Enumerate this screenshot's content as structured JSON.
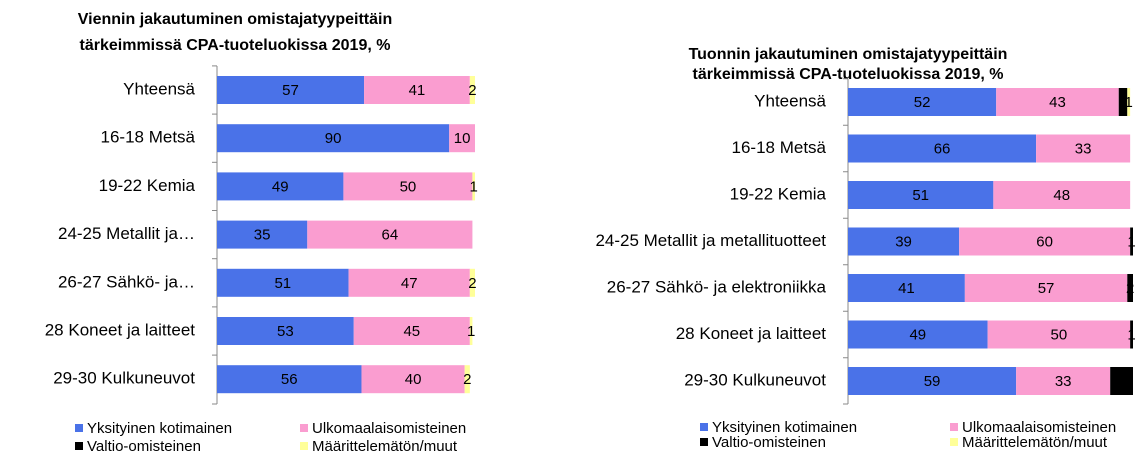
{
  "chart_data": [
    {
      "type": "stacked-bar-horizontal",
      "title": [
        "Viennin jakautuminen omistajatyypeittäin",
        "tärkeimmissä CPA-tuoteluokissa 2019, %"
      ],
      "categories": [
        "Yhteensä",
        "16-18 Metsä",
        "19-22 Kemia",
        "24-25 Metallit ja…",
        "26-27 Sähkö- ja…",
        "28 Koneet ja laitteet",
        "29-30 Kulkuneuvot"
      ],
      "xlim": [
        0,
        100
      ],
      "series": [
        {
          "name": "Yksityinen kotimainen",
          "color": "#4a72e8",
          "values": [
            57,
            90,
            49,
            35,
            51,
            53,
            56
          ]
        },
        {
          "name": "Ulkomaalaisomisteinen",
          "color": "#fa9dd0",
          "values": [
            41,
            10,
            50,
            64,
            47,
            45,
            40
          ]
        },
        {
          "name": "Valtio-omisteinen",
          "color": "#000000",
          "values": [
            0,
            0,
            0,
            0,
            0,
            0,
            0
          ]
        },
        {
          "name": "Määrittelemätön/muut",
          "color": "#ffff99",
          "values": [
            2,
            0,
            1,
            0,
            2,
            1,
            2
          ]
        }
      ]
    },
    {
      "type": "stacked-bar-horizontal",
      "title": [
        "Tuonnin jakautuminen omistajatyypeittäin",
        "tärkeimmissä CPA-tuoteluokissa 2019, %"
      ],
      "categories": [
        "Yhteensä",
        "16-18 Metsä",
        "19-22 Kemia",
        "24-25 Metallit ja metallituotteet",
        "26-27 Sähkö- ja elektroniikka",
        "28 Koneet ja laitteet",
        "29-30 Kulkuneuvot"
      ],
      "xlim": [
        0,
        100
      ],
      "series": [
        {
          "name": "Yksityinen kotimainen",
          "color": "#4a72e8",
          "values": [
            52,
            66,
            51,
            39,
            41,
            49,
            59
          ]
        },
        {
          "name": "Ulkomaalaisomisteinen",
          "color": "#fa9dd0",
          "values": [
            43,
            33,
            48,
            60,
            57,
            50,
            33
          ]
        },
        {
          "name": "Valtio-omisteinen",
          "color": "#000000",
          "values": [
            3,
            0,
            0,
            1,
            2,
            1,
            8
          ]
        },
        {
          "name": "Määrittelemätön/muut",
          "color": "#ffff99",
          "values": [
            1,
            0,
            0,
            0,
            0,
            0,
            0
          ]
        }
      ]
    }
  ]
}
